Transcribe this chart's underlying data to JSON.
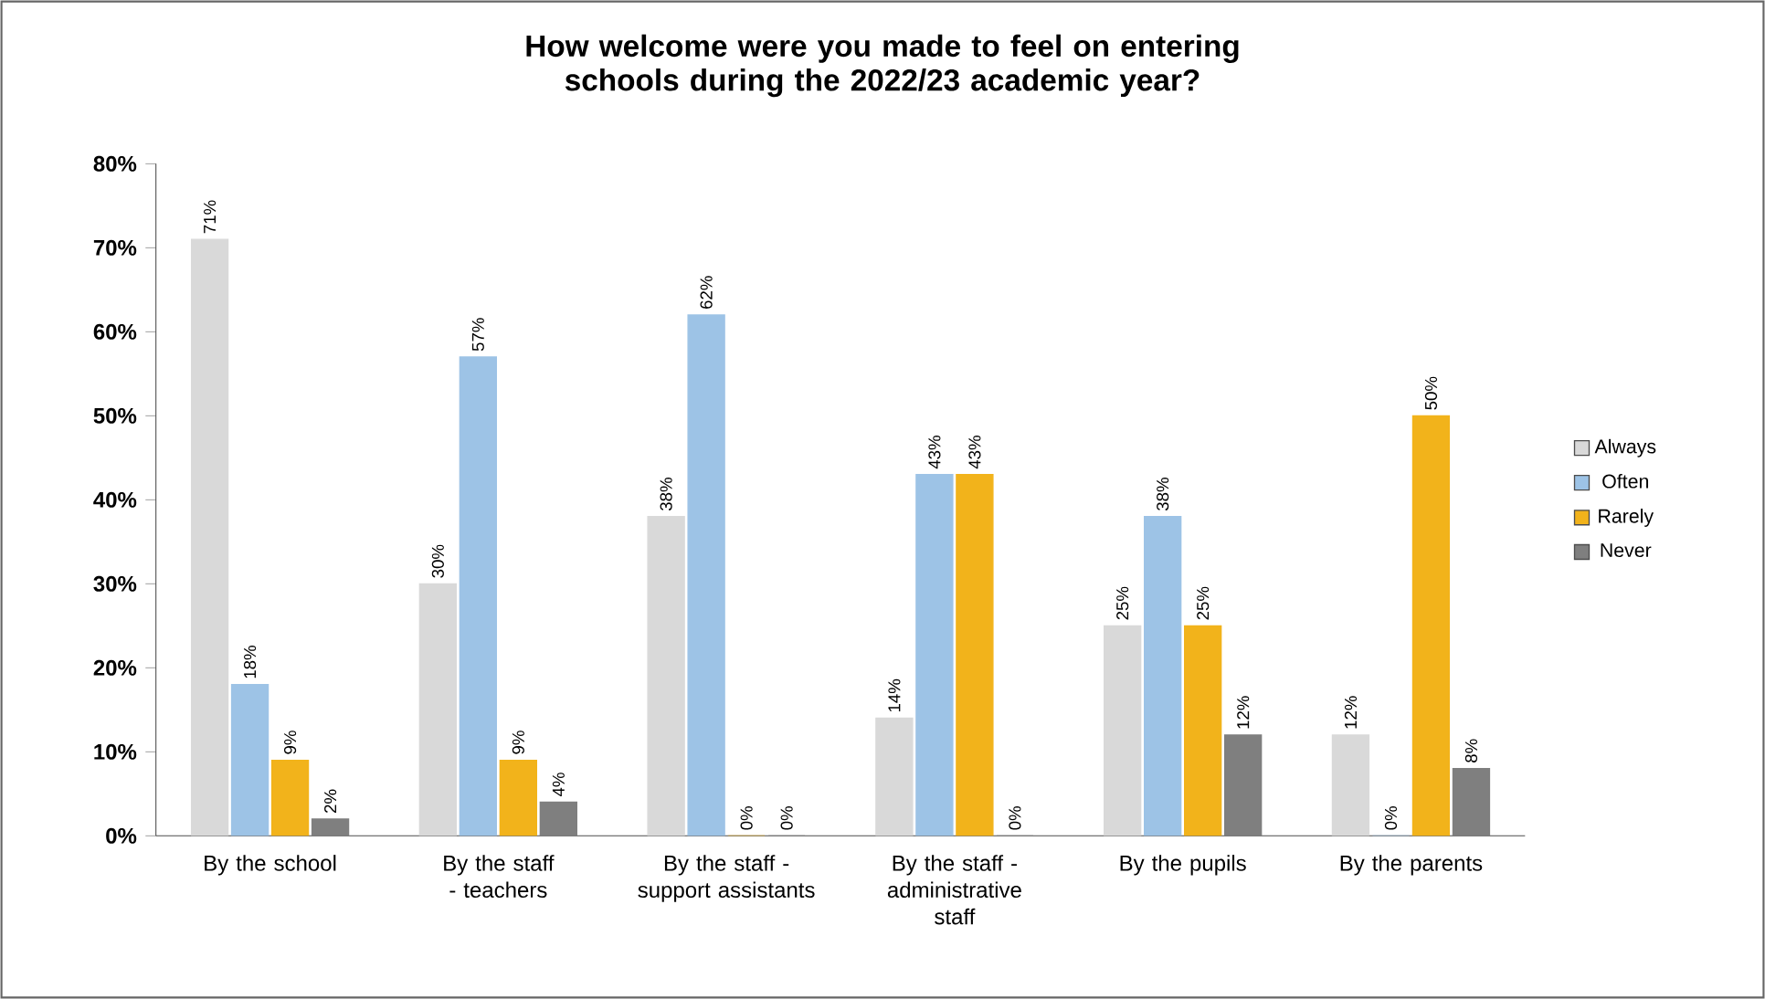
{
  "chart_data": {
    "type": "bar",
    "title": "How welcome were you made to feel on entering schools during the 2022/23 academic year?",
    "categories": [
      "By the school",
      "By the staff - teachers",
      "By the staff - support assistants",
      "By the staff - administrative staff",
      "By the pupils",
      "By the parents"
    ],
    "series": [
      {
        "name": "Always",
        "color": "#d9d9d9",
        "values": [
          71,
          30,
          38,
          14,
          25,
          12
        ],
        "value_labels": [
          "71%",
          "30%",
          "38%",
          "14%",
          "25%",
          "12%"
        ]
      },
      {
        "name": "Often",
        "color": "#9dc3e6",
        "values": [
          18,
          57,
          62,
          43,
          38,
          0
        ],
        "value_labels": [
          "18%",
          "57%",
          "62%",
          "43%",
          "38%",
          "0%"
        ]
      },
      {
        "name": "Rarely",
        "color": "#f2b31b",
        "values": [
          9,
          9,
          0,
          43,
          25,
          50
        ],
        "value_labels": [
          "9%",
          "9%",
          "0%",
          "43%",
          "25%",
          "50%"
        ]
      },
      {
        "name": "Never",
        "color": "#7f7f7f",
        "values": [
          2,
          4,
          0,
          0,
          12,
          8
        ],
        "value_labels": [
          "2%",
          "4%",
          "0%",
          "0%",
          "12%",
          "8%"
        ]
      }
    ],
    "ylim": [
      0,
      80
    ],
    "yticks": [
      {
        "value": 0,
        "label": "0%"
      },
      {
        "value": 10,
        "label": "10%"
      },
      {
        "value": 20,
        "label": "20%"
      },
      {
        "value": 30,
        "label": "30%"
      },
      {
        "value": 40,
        "label": "40%"
      },
      {
        "value": 50,
        "label": "50%"
      },
      {
        "value": 60,
        "label": "60%"
      },
      {
        "value": 70,
        "label": "70%"
      },
      {
        "value": 80,
        "label": "80%"
      }
    ],
    "legend": "right"
  }
}
